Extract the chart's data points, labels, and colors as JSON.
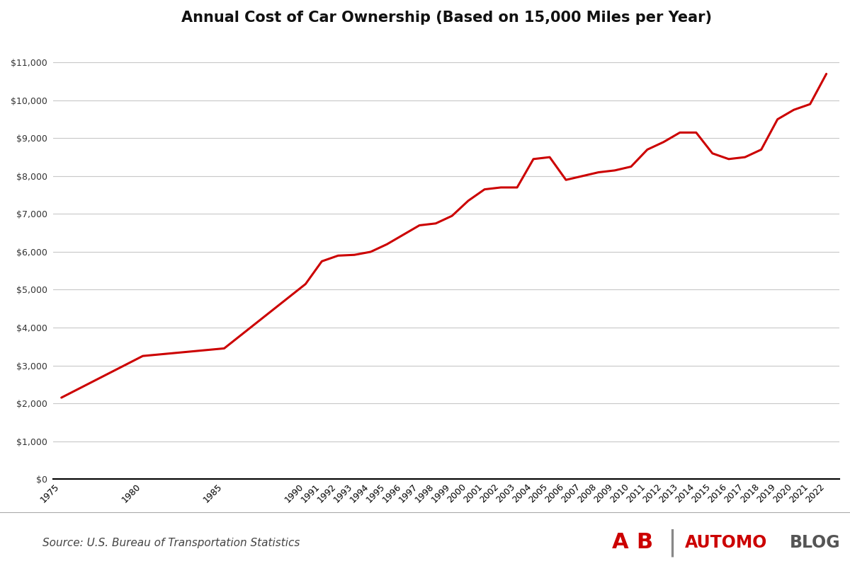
{
  "title": "Annual Cost of Car Ownership (Based on 15,000 Miles per Year)",
  "source": "Source: U.S. Bureau of Transportation Statistics",
  "line_color": "#CC0000",
  "line_width": 2.2,
  "background_color": "#FFFFFF",
  "grid_color": "#C8C8C8",
  "ylabel_color": "#333333",
  "years": [
    1975,
    1980,
    1985,
    1990,
    1991,
    1992,
    1993,
    1994,
    1995,
    1996,
    1997,
    1998,
    1999,
    2000,
    2001,
    2002,
    2003,
    2004,
    2005,
    2006,
    2007,
    2008,
    2009,
    2010,
    2011,
    2012,
    2013,
    2014,
    2015,
    2016,
    2017,
    2018,
    2019,
    2020,
    2021,
    2022
  ],
  "values": [
    2150,
    3250,
    3450,
    5150,
    5750,
    5900,
    5920,
    6000,
    6200,
    6450,
    6700,
    6750,
    6950,
    7350,
    7650,
    7700,
    7700,
    8450,
    8500,
    7900,
    8000,
    8100,
    8150,
    8250,
    8700,
    8900,
    9150,
    9150,
    8600,
    8450,
    8500,
    8700,
    9500,
    9750,
    9900,
    10700
  ],
  "ylim": [
    0,
    11500
  ],
  "yticks": [
    0,
    1000,
    2000,
    3000,
    4000,
    5000,
    6000,
    7000,
    8000,
    9000,
    10000,
    11000
  ],
  "title_fontsize": 15,
  "tick_fontsize": 9,
  "source_fontsize": 11,
  "logo_automo_color": "#CC0000",
  "logo_blog_color": "#555555",
  "logo_ab_color": "#CC0000",
  "logo_bar_color": "#333333"
}
